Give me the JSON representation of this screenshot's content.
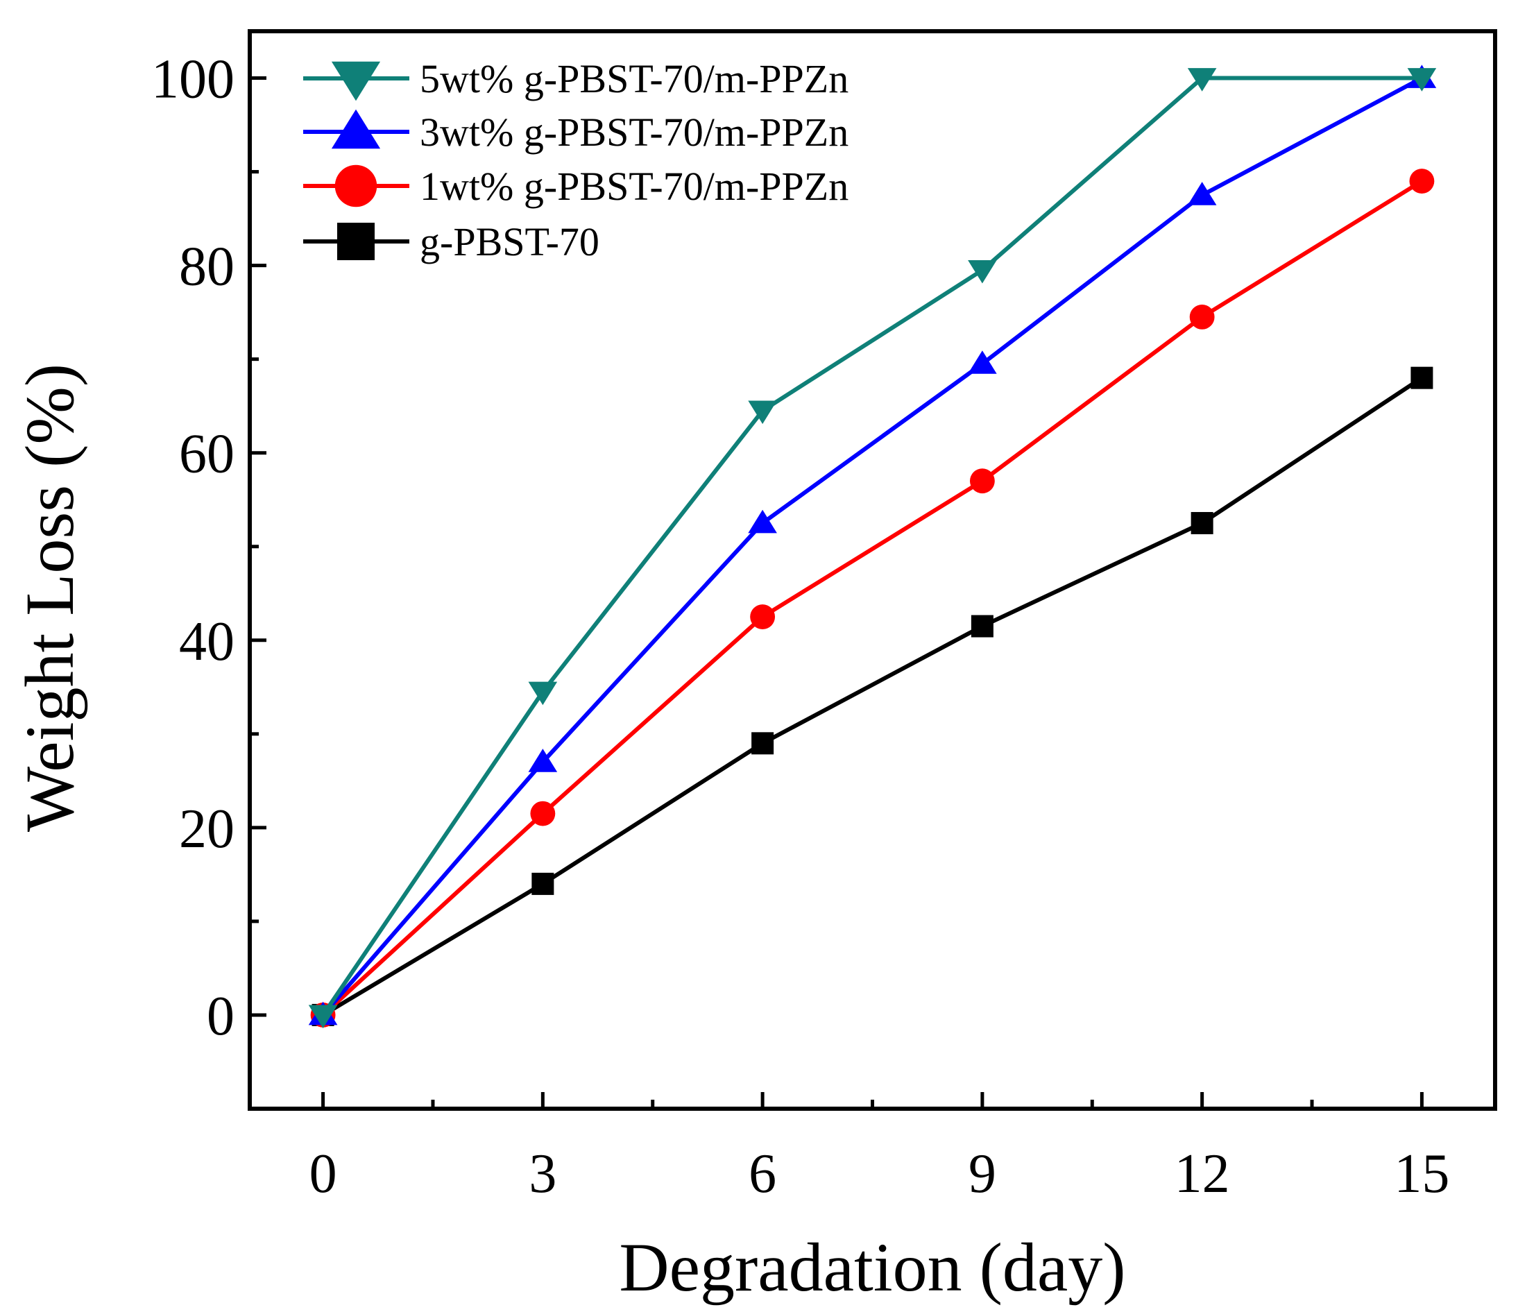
{
  "chart_data": {
    "type": "line",
    "title": "",
    "xlabel": "Degradation (day)",
    "ylabel": "Weight Loss (%)",
    "x": [
      0,
      3,
      6,
      9,
      12,
      15
    ],
    "xlim": [
      -1,
      16
    ],
    "ylim": [
      -10,
      105
    ],
    "xticks": [
      0,
      3,
      6,
      9,
      12,
      15
    ],
    "xtick_labels": [
      "0",
      "3",
      "6",
      "9",
      "12",
      "15"
    ],
    "yticks": [
      0,
      20,
      40,
      60,
      80,
      100
    ],
    "ytick_labels": [
      "0",
      "20",
      "40",
      "60",
      "80",
      "100"
    ],
    "grid": false,
    "legend_position": "top-left",
    "series": [
      {
        "name": "5wt% g-PBST-70/m-PPZn",
        "color": "#0f8078",
        "marker": "triangle-down",
        "values": [
          0,
          34.5,
          64.5,
          79.5,
          100,
          100
        ]
      },
      {
        "name": "3wt% g-PBST-70/m-PPZn",
        "color": "#0000ff",
        "marker": "triangle-up",
        "values": [
          0,
          27,
          52.5,
          69.5,
          87.5,
          100
        ]
      },
      {
        "name": "1wt% g-PBST-70/m-PPZn",
        "color": "#ff0000",
        "marker": "circle",
        "values": [
          0,
          21.5,
          42.5,
          57,
          74.5,
          89
        ]
      },
      {
        "name": "g-PBST-70",
        "color": "#000000",
        "marker": "square",
        "values": [
          0,
          14,
          29,
          41.5,
          52.5,
          68
        ]
      }
    ]
  }
}
